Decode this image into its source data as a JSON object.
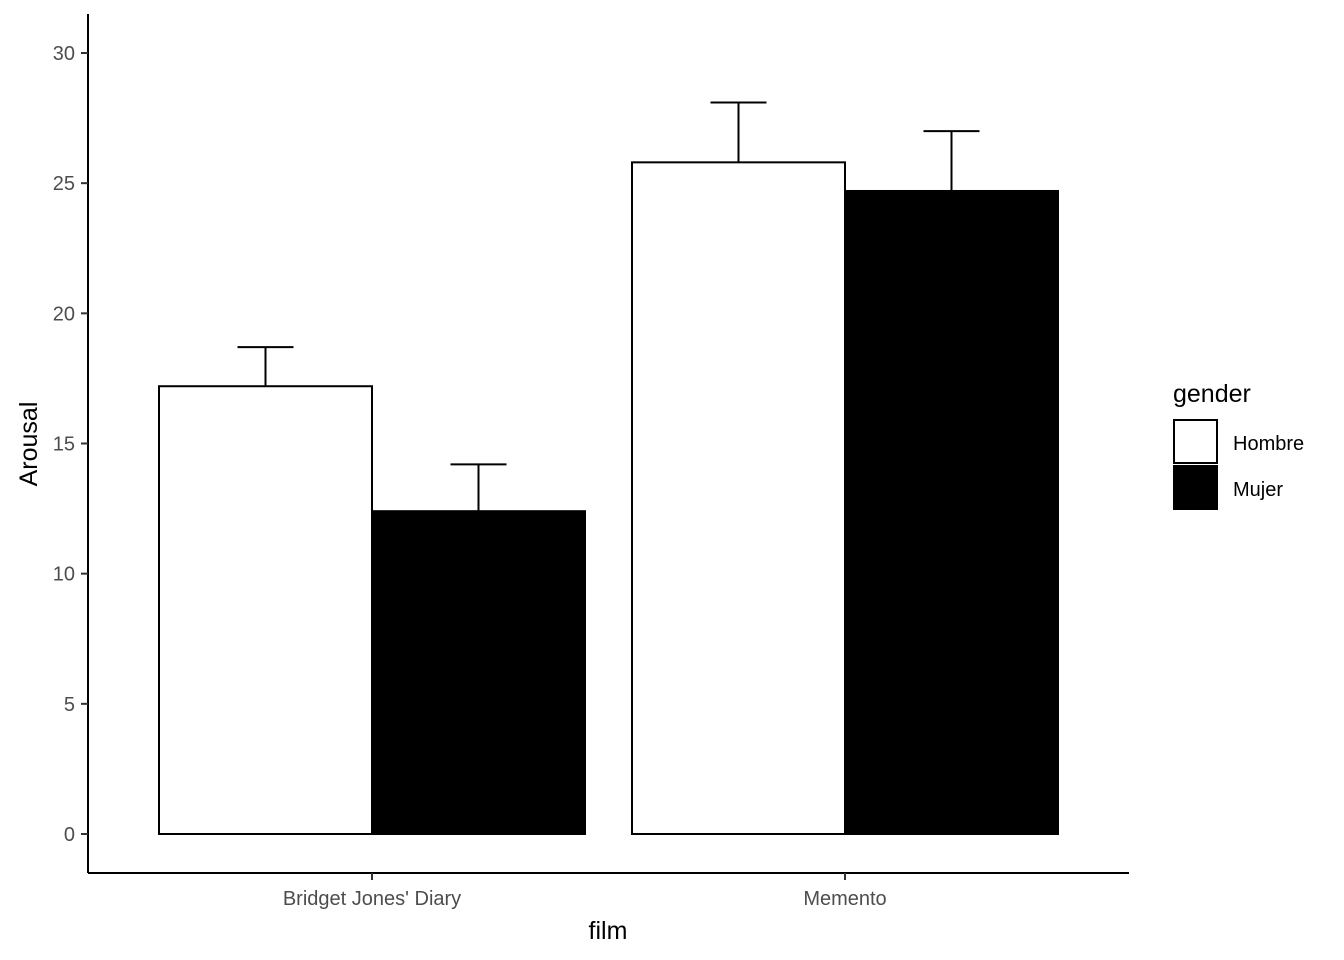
{
  "chart_data": {
    "type": "bar",
    "categories": [
      "Bridget Jones' Diary",
      "Memento"
    ],
    "series": [
      {
        "name": "Hombre",
        "values": [
          17.2,
          25.8
        ],
        "error_upper": [
          18.7,
          28.1
        ],
        "color": "#ffffff"
      },
      {
        "name": "Mujer",
        "values": [
          12.4,
          24.7
        ],
        "error_upper": [
          14.2,
          27.0
        ],
        "color": "#000000"
      }
    ],
    "xlabel": "film",
    "ylabel": "Arousal",
    "ylim": [
      0,
      30
    ],
    "yticks": [
      0,
      5,
      10,
      15,
      20,
      25,
      30
    ],
    "grid": false,
    "legend": {
      "title": "gender",
      "position": "right"
    }
  }
}
